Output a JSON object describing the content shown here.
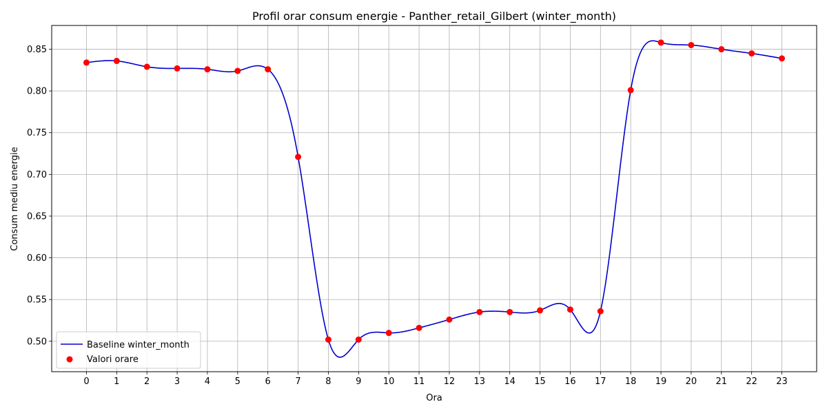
{
  "chart_data": {
    "type": "line",
    "title": "Profil orar consum energie - Panther_retail_Gilbert (winter_month)",
    "xlabel": "Ora",
    "ylabel": "Consum mediu energie",
    "x": [
      0,
      1,
      2,
      3,
      4,
      5,
      6,
      7,
      8,
      9,
      10,
      11,
      12,
      13,
      14,
      15,
      16,
      17,
      18,
      19,
      20,
      21,
      22,
      23
    ],
    "x_tick_labels": [
      "0",
      "1",
      "2",
      "3",
      "4",
      "5",
      "6",
      "7",
      "8",
      "9",
      "10",
      "11",
      "12",
      "13",
      "14",
      "15",
      "16",
      "17",
      "18",
      "19",
      "20",
      "21",
      "22",
      "23"
    ],
    "y_ticks": [
      0.5,
      0.55,
      0.6,
      0.65,
      0.7,
      0.75,
      0.8,
      0.85
    ],
    "y_tick_labels": [
      "0.50",
      "0.55",
      "0.60",
      "0.65",
      "0.70",
      "0.75",
      "0.80",
      "0.85"
    ],
    "xlim": [
      -1.15,
      24.15
    ],
    "ylim": [
      0.4635,
      0.8785
    ],
    "grid": true,
    "legend_position": "lower-left",
    "series": [
      {
        "name": "Baseline winter_month",
        "kind": "line",
        "interpolation": "cubic-spline",
        "color": "#0000cc",
        "values": [
          0.834,
          0.836,
          0.829,
          0.827,
          0.826,
          0.824,
          0.826,
          0.721,
          0.502,
          0.502,
          0.51,
          0.516,
          0.526,
          0.535,
          0.535,
          0.537,
          0.538,
          0.536,
          0.801,
          0.858,
          0.855,
          0.85,
          0.845,
          0.839
        ]
      },
      {
        "name": "Valori orare",
        "kind": "scatter",
        "color": "#ff0000",
        "values": [
          0.834,
          0.836,
          0.829,
          0.827,
          0.826,
          0.824,
          0.826,
          0.721,
          0.502,
          0.502,
          0.51,
          0.516,
          0.526,
          0.535,
          0.535,
          0.537,
          0.538,
          0.536,
          0.801,
          0.858,
          0.855,
          0.85,
          0.845,
          0.839
        ]
      }
    ]
  }
}
